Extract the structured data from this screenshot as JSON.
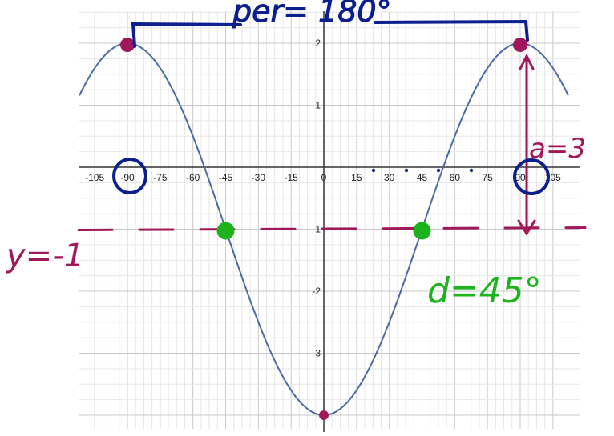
{
  "chart_data": {
    "type": "line",
    "title": "",
    "xlabel": "",
    "ylabel": "",
    "xlim": [
      -112,
      112
    ],
    "ylim": [
      -4.15,
      2.5
    ],
    "x_ticks": [
      -105,
      -90,
      -75,
      -60,
      -45,
      -30,
      -15,
      0,
      15,
      30,
      45,
      60,
      75,
      90,
      105
    ],
    "x_tick_labels": [
      "-105",
      "-90",
      "-75",
      "-60",
      "-45",
      "-30",
      "-15",
      "0",
      "15",
      "30",
      "45",
      "60",
      "75",
      "90",
      "105"
    ],
    "y_ticks": [
      2,
      1,
      -1,
      -2,
      -3
    ],
    "y_tick_labels": [
      "2",
      "1",
      "-1",
      "-2",
      "-3"
    ],
    "grid": true,
    "series": [
      {
        "function": "y = -3cos(2x) - 1 (degrees)",
        "amplitude": 3,
        "period": 180,
        "midline": -1,
        "color": "#4a6aa5"
      }
    ],
    "midline": {
      "y": -1,
      "label": "y=-1",
      "color": "#a0185a"
    },
    "maxima": [
      {
        "x": -90,
        "y": 2
      },
      {
        "x": 90,
        "y": 2
      }
    ],
    "minimum": {
      "x": 0,
      "y": -4
    },
    "midline_crossings": [
      {
        "x": -45,
        "y": -1
      },
      {
        "x": 45,
        "y": -1
      }
    ],
    "annotations": {
      "period": "per= 180°",
      "amplitude": "a=3",
      "phase": "d=45°",
      "midline": "y=-1"
    },
    "colors": {
      "navy": "#0b1f8f",
      "magenta": "#a0185a",
      "green": "#1db31d",
      "curve": "#4a6aa5"
    }
  }
}
